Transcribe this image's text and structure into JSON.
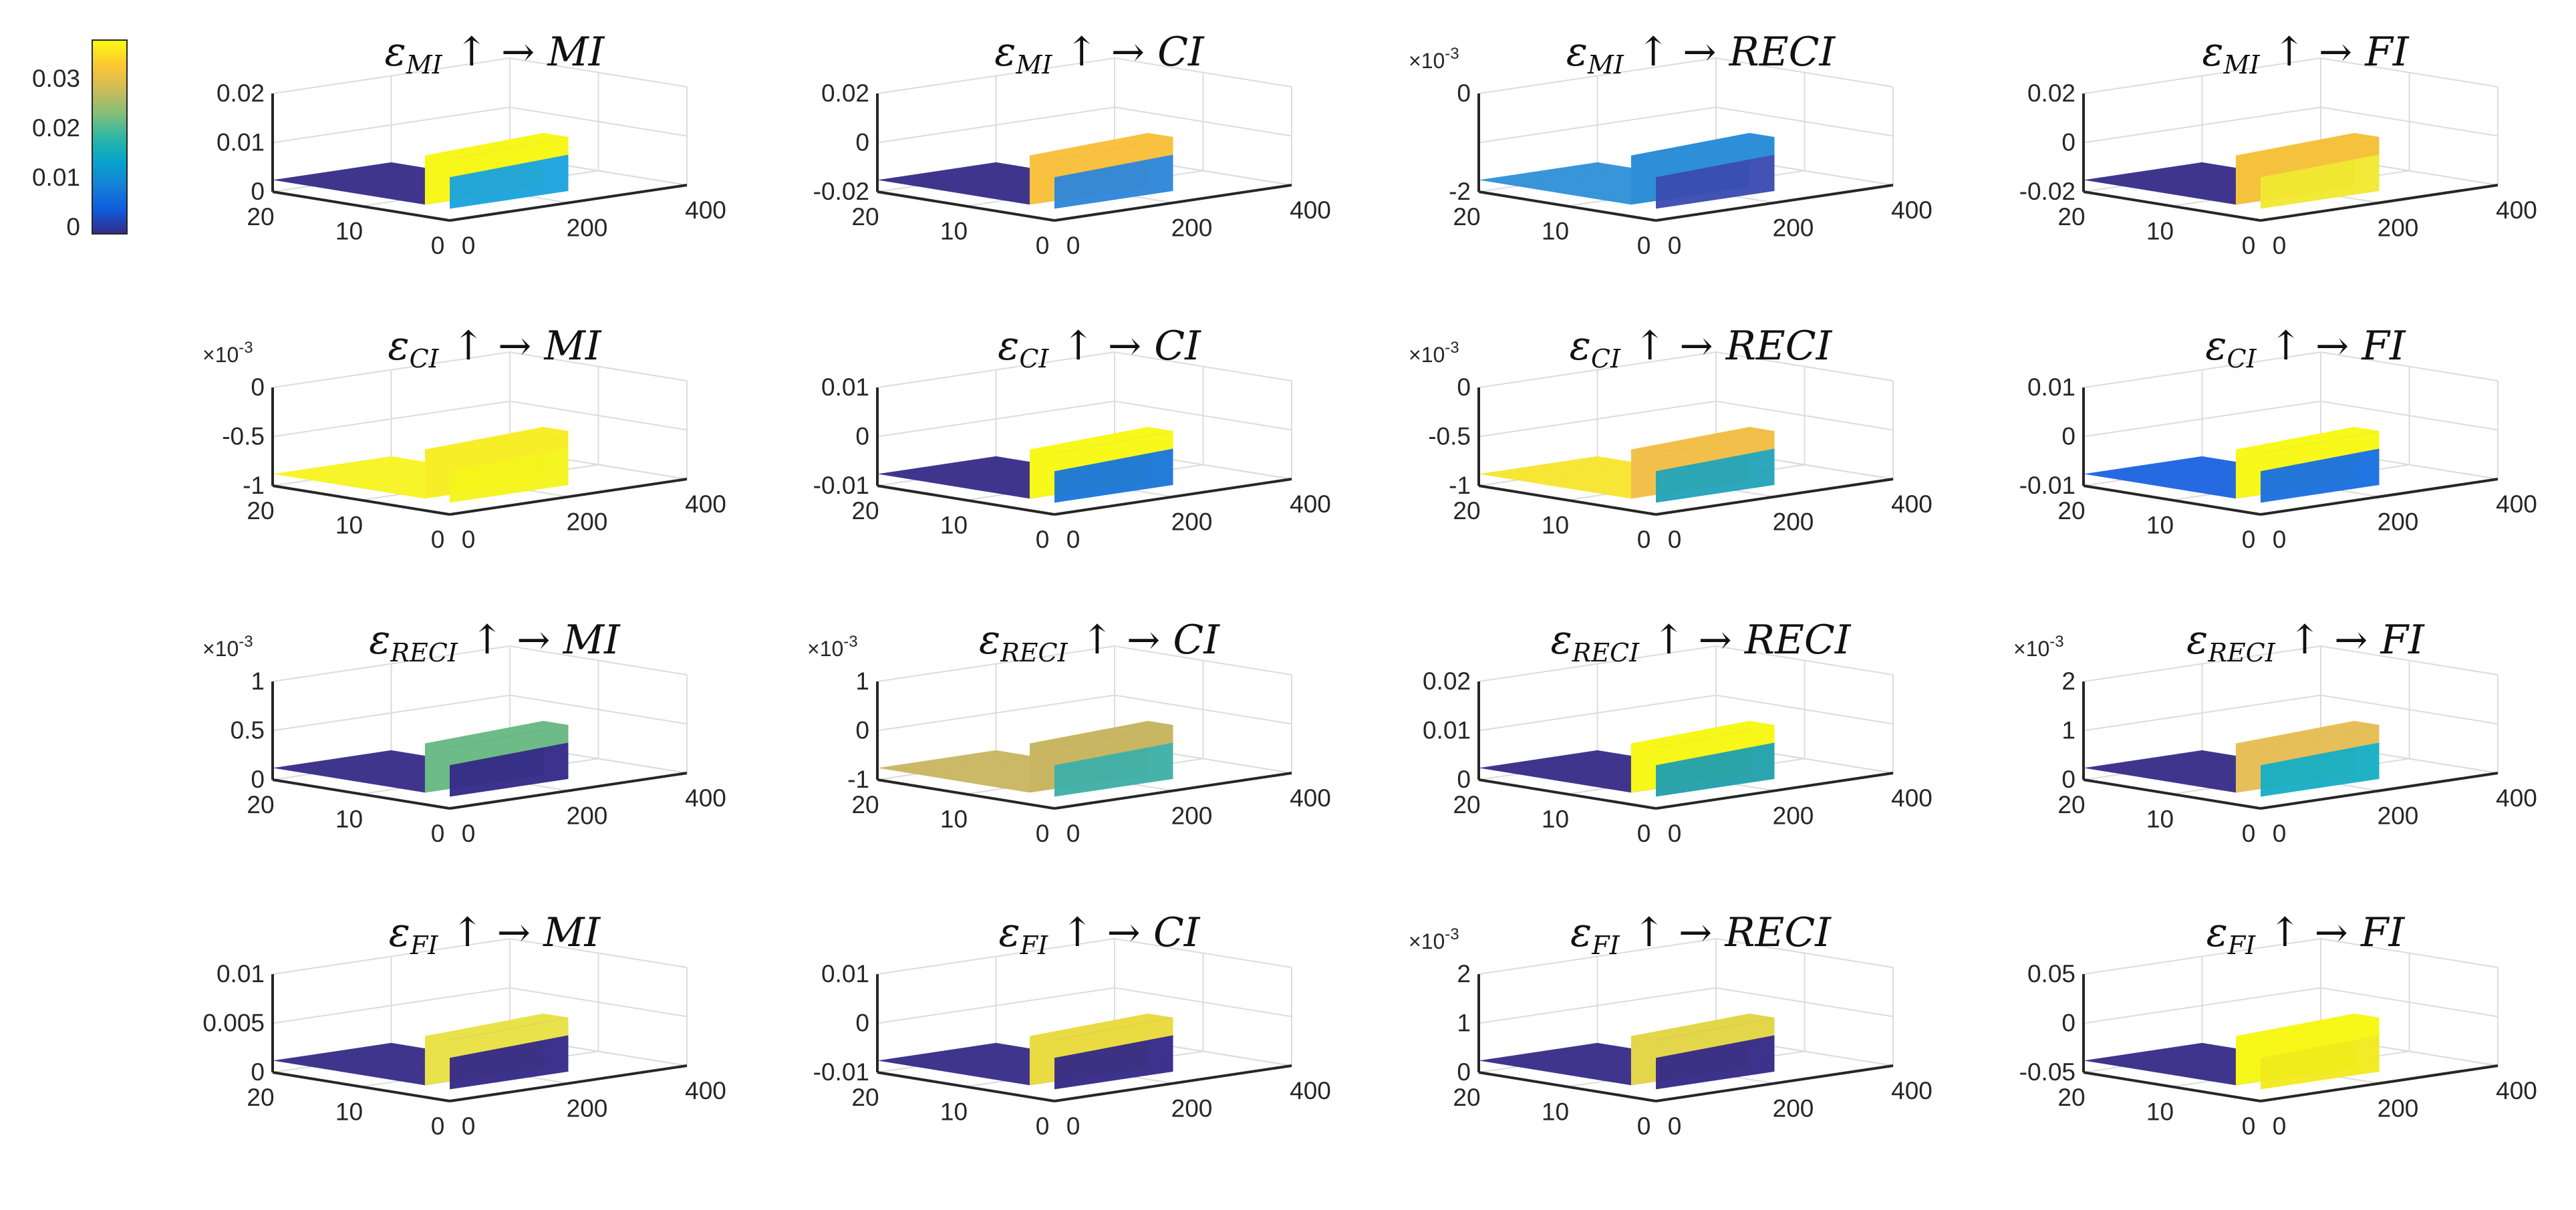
{
  "chart_data": {
    "type": "surface-grid",
    "colorbar": {
      "ticks": [
        "0.03",
        "0.02",
        "0.01",
        "0"
      ],
      "colormap": [
        "#352a87",
        "#0f5cdd",
        "#1481d6",
        "#06a4ca",
        "#2eb7a4",
        "#87bf77",
        "#d1bb59",
        "#fec832",
        "#f9fb0e"
      ]
    },
    "xticks": [
      "20",
      "10",
      "0"
    ],
    "yticks": [
      "0",
      "200",
      "400"
    ],
    "panels": [
      {
        "row": 0,
        "col": 0,
        "eps_sub": "MI",
        "target": "MI",
        "exponent": "",
        "zticks": [
          "0.02",
          "0.01",
          "0"
        ],
        "back_color": "#f7f71a",
        "front_color": "#1ba3dd",
        "left_color": "#352a87"
      },
      {
        "row": 0,
        "col": 1,
        "eps_sub": "MI",
        "target": "CI",
        "exponent": "",
        "zticks": [
          "0.02",
          "0",
          "-0.02"
        ],
        "back_color": "#f8c140",
        "front_color": "#2e86d8",
        "left_color": "#352a87"
      },
      {
        "row": 0,
        "col": 2,
        "eps_sub": "MI",
        "target": "RECI",
        "exponent": "×10-3",
        "zticks": [
          "0",
          "-2"
        ],
        "back_color": "#2d8fd8",
        "front_color": "#3a4cb0",
        "left_color": "#2d8fd8"
      },
      {
        "row": 0,
        "col": 3,
        "eps_sub": "MI",
        "target": "FI",
        "exponent": "",
        "zticks": [
          "0.02",
          "0",
          "-0.02"
        ],
        "back_color": "#f5c23e",
        "front_color": "#f1e830",
        "left_color": "#352a87"
      },
      {
        "row": 1,
        "col": 0,
        "eps_sub": "CI",
        "target": "MI",
        "exponent": "×10-3",
        "zticks": [
          "0",
          "-0.5",
          "-1"
        ],
        "back_color": "#f8ee28",
        "front_color": "#f5f51b",
        "left_color": "#f7f31f"
      },
      {
        "row": 1,
        "col": 1,
        "eps_sub": "CI",
        "target": "CI",
        "exponent": "",
        "zticks": [
          "0.01",
          "0",
          "-0.01"
        ],
        "back_color": "#f8f81a",
        "front_color": "#1a77d8",
        "left_color": "#352a87"
      },
      {
        "row": 1,
        "col": 2,
        "eps_sub": "CI",
        "target": "RECI",
        "exponent": "×10-3",
        "zticks": [
          "0",
          "-0.5",
          "-1"
        ],
        "back_color": "#f2c04a",
        "front_color": "#23a3b8",
        "left_color": "#f7e52a"
      },
      {
        "row": 1,
        "col": 3,
        "eps_sub": "CI",
        "target": "FI",
        "exponent": "",
        "zticks": [
          "0.01",
          "0",
          "-0.01"
        ],
        "back_color": "#f8f81a",
        "front_color": "#1a6fe0",
        "left_color": "#1a62e0"
      },
      {
        "row": 2,
        "col": 0,
        "eps_sub": "RECI",
        "target": "MI",
        "exponent": "×10-3",
        "zticks": [
          "1",
          "0.5",
          "0"
        ],
        "back_color": "#6dbb86",
        "front_color": "#352a87",
        "left_color": "#352a87"
      },
      {
        "row": 2,
        "col": 1,
        "eps_sub": "RECI",
        "target": "CI",
        "exponent": "×10-3",
        "zticks": [
          "1",
          "0",
          "-1"
        ],
        "back_color": "#c9b662",
        "front_color": "#3eb0a8",
        "left_color": "#c8b560"
      },
      {
        "row": 2,
        "col": 2,
        "eps_sub": "RECI",
        "target": "RECI",
        "exponent": "",
        "zticks": [
          "0.02",
          "0.01",
          "0"
        ],
        "back_color": "#f7f71a",
        "front_color": "#22a0ad",
        "left_color": "#352a87"
      },
      {
        "row": 2,
        "col": 3,
        "eps_sub": "RECI",
        "target": "FI",
        "exponent": "×10-3",
        "zticks": [
          "2",
          "1",
          "0"
        ],
        "back_color": "#e6bf58",
        "front_color": "#17aec4",
        "left_color": "#352a87"
      },
      {
        "row": 3,
        "col": 0,
        "eps_sub": "FI",
        "target": "MI",
        "exponent": "",
        "zticks": [
          "0.01",
          "0.005",
          "0"
        ],
        "back_color": "#e9e24a",
        "front_color": "#352a87",
        "left_color": "#352a87"
      },
      {
        "row": 3,
        "col": 1,
        "eps_sub": "FI",
        "target": "CI",
        "exponent": "",
        "zticks": [
          "0.01",
          "0",
          "-0.01"
        ],
        "back_color": "#eadb43",
        "front_color": "#352a87",
        "left_color": "#352a87"
      },
      {
        "row": 3,
        "col": 2,
        "eps_sub": "FI",
        "target": "RECI",
        "exponent": "×10-3",
        "zticks": [
          "2",
          "1",
          "0"
        ],
        "back_color": "#e4d64b",
        "front_color": "#352a87",
        "left_color": "#352a87"
      },
      {
        "row": 3,
        "col": 3,
        "eps_sub": "FI",
        "target": "FI",
        "exponent": "",
        "zticks": [
          "0.05",
          "0",
          "-0.05"
        ],
        "back_color": "#f7f71a",
        "front_color": "#f1ea1c",
        "left_color": "#352a87"
      }
    ]
  }
}
